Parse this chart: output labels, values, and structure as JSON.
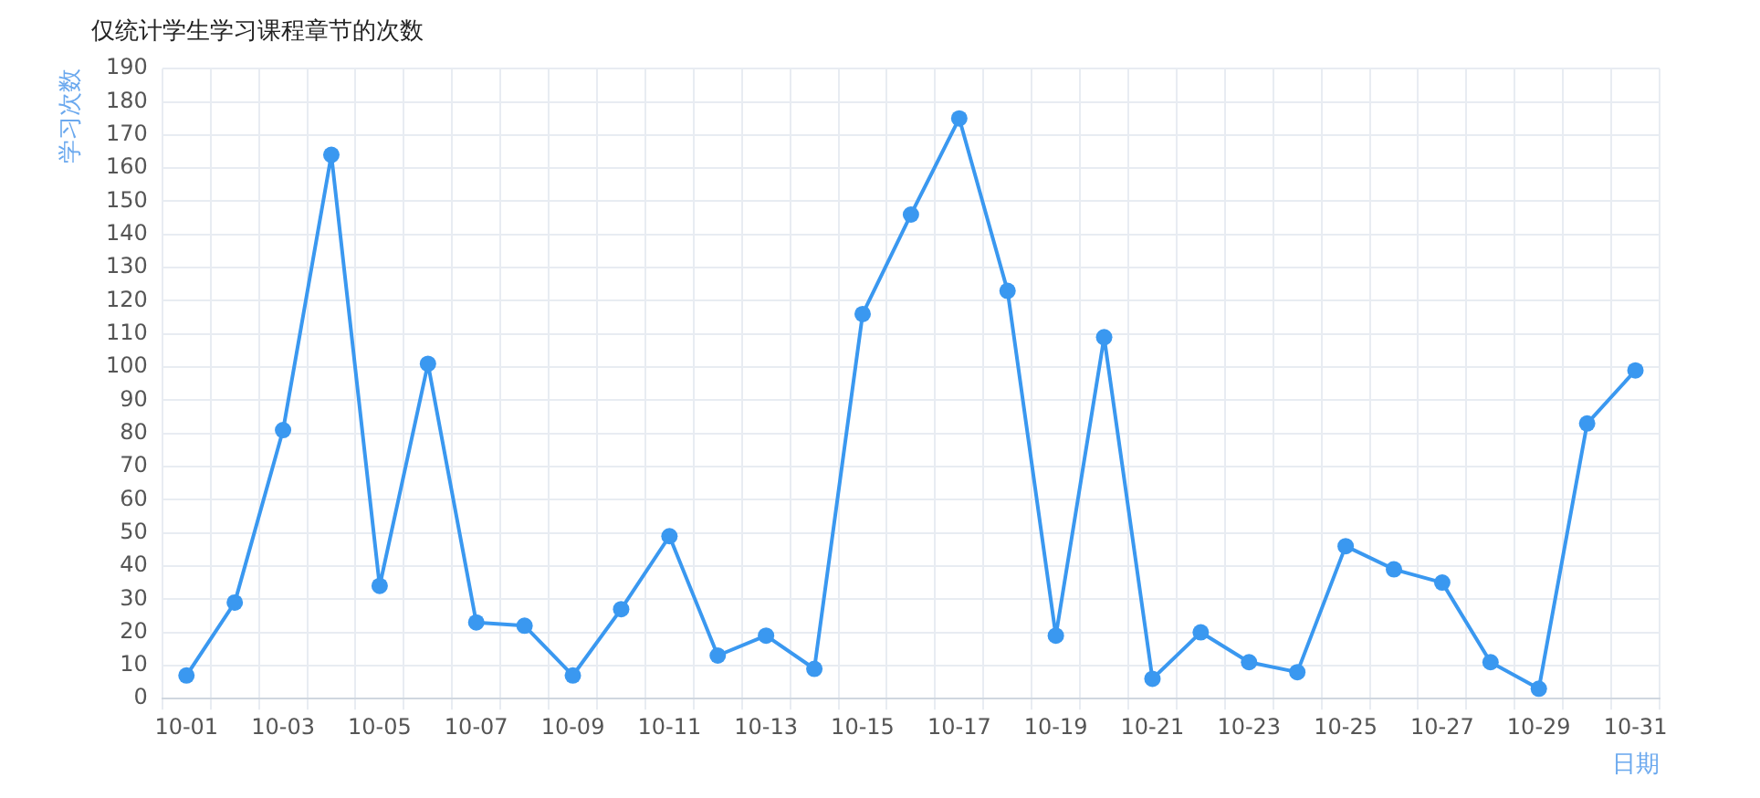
{
  "chart_data": {
    "type": "line",
    "title": "仅统计学生学习课程章节的次数",
    "xlabel": "日期",
    "ylabel": "学习次数",
    "categories": [
      "10-01",
      null,
      "10-03",
      null,
      "10-05",
      null,
      "10-07",
      null,
      "10-09",
      null,
      "10-11",
      null,
      "10-13",
      null,
      "10-15",
      null,
      "10-17",
      null,
      "10-19",
      null,
      "10-21",
      null,
      "10-23",
      null,
      "10-25",
      null,
      "10-27",
      null,
      "10-29",
      null,
      "10-31"
    ],
    "series": [
      {
        "color": "#3a98f0",
        "values": [
          7,
          29,
          81,
          164,
          34,
          101,
          23,
          22,
          7,
          27,
          49,
          13,
          19,
          9,
          116,
          146,
          175,
          123,
          19,
          109,
          6,
          20,
          11,
          8,
          46,
          39,
          35,
          11,
          3,
          83,
          99
        ]
      }
    ],
    "ylim": [
      0,
      190
    ],
    "yticks": [
      0,
      10,
      20,
      30,
      40,
      50,
      60,
      70,
      80,
      90,
      100,
      110,
      120,
      130,
      140,
      150,
      160,
      170,
      180,
      190
    ],
    "grid": true,
    "legend": false,
    "marker": "circle",
    "line_style": "solid"
  }
}
